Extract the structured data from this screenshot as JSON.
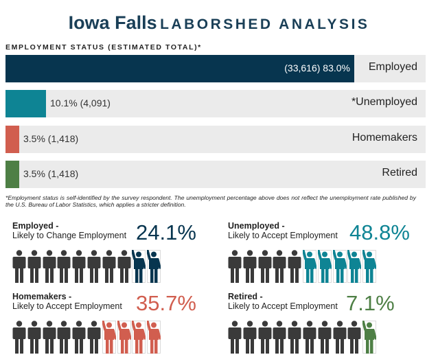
{
  "title": {
    "city": "Iowa Falls",
    "subtitle": "LABORSHED ANALYSIS"
  },
  "section_label": "EMPLOYMENT STATUS (ESTIMATED TOTAL)*",
  "footnote": "*Employment status is self-identified by the survey respondent. The unemployment percentage above does not reflect the unemployment rate published by the U.S. Bureau of Labor Statistics, which applies a stricter definition.",
  "colors": {
    "employed": "#07354f",
    "unemployed": "#0e8494",
    "homemakers": "#d15e4f",
    "retired": "#4e7f45",
    "neutral": "#3a3a3a",
    "track": "#ebebeb"
  },
  "chart_data": [
    {
      "type": "bar",
      "orientation": "horizontal",
      "title": "EMPLOYMENT STATUS (ESTIMATED TOTAL)*",
      "categories": [
        "Employed",
        "*Unemployed",
        "Homemakers",
        "Retired"
      ],
      "values": [
        83.0,
        10.1,
        3.5,
        3.5
      ],
      "counts": [
        33616,
        4091,
        1418,
        1418
      ],
      "labels": [
        "(33,616) 83.0%",
        "10.1% (4,091)",
        "3.5% (1,418)",
        "3.5% (1,418)"
      ],
      "xlim": [
        0,
        100
      ]
    },
    {
      "type": "pictograph",
      "panels": [
        {
          "title": "Employed -",
          "subtitle": "Likely to Change Employment",
          "percent_label": "24.1%",
          "value": 24.1,
          "highlighted": 2,
          "total": 10,
          "color_key": "employed"
        },
        {
          "title": "Unemployed -",
          "subtitle": "Likely to Accept Employment",
          "percent_label": "48.8%",
          "value": 48.8,
          "highlighted": 5,
          "total": 10,
          "color_key": "unemployed"
        },
        {
          "title": "Homemakers -",
          "subtitle": "Likely to Accept Employment",
          "percent_label": "35.7%",
          "value": 35.7,
          "highlighted": 4,
          "total": 10,
          "color_key": "homemakers"
        },
        {
          "title": "Retired -",
          "subtitle": "Likely to Accept Employment",
          "percent_label": "7.1%",
          "value": 7.1,
          "highlighted": 1,
          "total": 10,
          "color_key": "retired"
        }
      ]
    }
  ]
}
